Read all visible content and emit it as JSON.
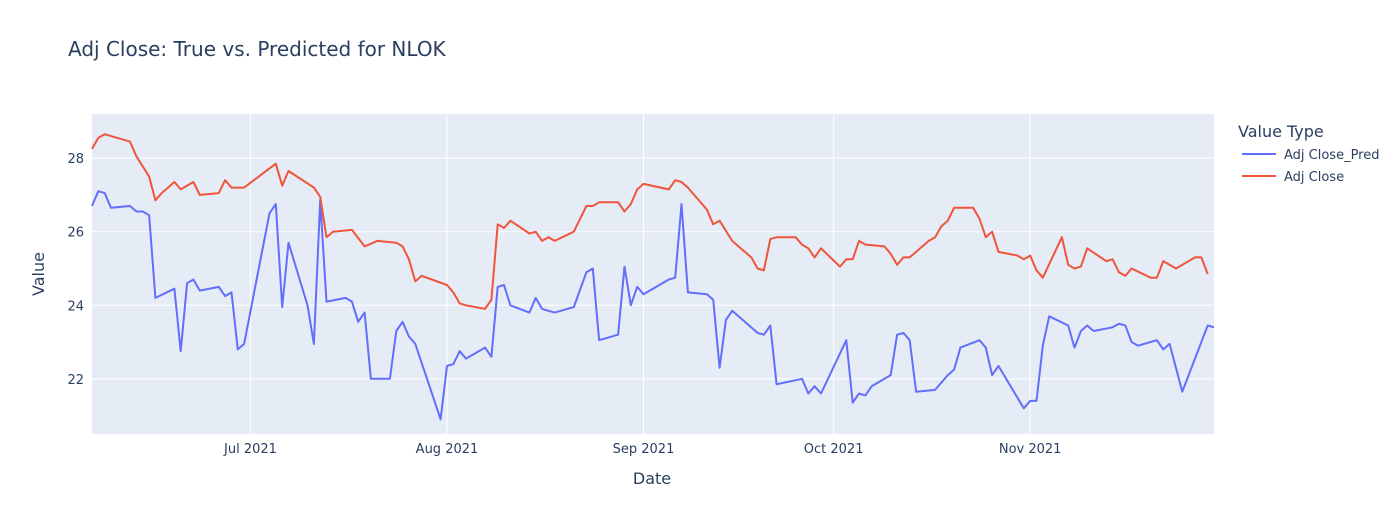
{
  "chart_data": {
    "type": "line",
    "title": "Adj Close: True vs. Predicted for NLOK",
    "xlabel": "Date",
    "ylabel": "Value",
    "x_range": [
      "2021-06-06",
      "2021-11-30"
    ],
    "ylim": [
      20.5,
      29.2
    ],
    "x_ticks": [
      {
        "date": "2021-07-01",
        "label": "Jul 2021"
      },
      {
        "date": "2021-08-01",
        "label": "Aug 2021"
      },
      {
        "date": "2021-09-01",
        "label": "Sep 2021"
      },
      {
        "date": "2021-10-01",
        "label": "Oct 2021"
      },
      {
        "date": "2021-11-01",
        "label": "Nov 2021"
      }
    ],
    "y_ticks": [
      22,
      24,
      26,
      28
    ],
    "grid": true,
    "plot_bg": "#e5ecf6",
    "legend": {
      "title": "Value Type",
      "placement": "right"
    },
    "series": [
      {
        "name": "Adj Close_Pred",
        "color": "#636efa",
        "points": [
          [
            "2021-06-06",
            26.7
          ],
          [
            "2021-06-07",
            27.1
          ],
          [
            "2021-06-08",
            27.05
          ],
          [
            "2021-06-09",
            26.65
          ],
          [
            "2021-06-12",
            26.7
          ],
          [
            "2021-06-13",
            26.55
          ],
          [
            "2021-06-14",
            26.55
          ],
          [
            "2021-06-15",
            26.45
          ],
          [
            "2021-06-16",
            24.2
          ],
          [
            "2021-06-19",
            24.45
          ],
          [
            "2021-06-20",
            22.75
          ],
          [
            "2021-06-21",
            24.6
          ],
          [
            "2021-06-22",
            24.7
          ],
          [
            "2021-06-23",
            24.4
          ],
          [
            "2021-06-26",
            24.5
          ],
          [
            "2021-06-27",
            24.25
          ],
          [
            "2021-06-28",
            24.35
          ],
          [
            "2021-06-29",
            22.8
          ],
          [
            "2021-06-30",
            22.95
          ],
          [
            "2021-07-04",
            26.5
          ],
          [
            "2021-07-05",
            26.75
          ],
          [
            "2021-07-06",
            23.95
          ],
          [
            "2021-07-07",
            25.7
          ],
          [
            "2021-07-10",
            24.0
          ],
          [
            "2021-07-11",
            22.95
          ],
          [
            "2021-07-12",
            26.85
          ],
          [
            "2021-07-13",
            24.1
          ],
          [
            "2021-07-16",
            24.2
          ],
          [
            "2021-07-17",
            24.1
          ],
          [
            "2021-07-18",
            23.55
          ],
          [
            "2021-07-19",
            23.8
          ],
          [
            "2021-07-20",
            22.0
          ],
          [
            "2021-07-23",
            22.0
          ],
          [
            "2021-07-24",
            23.3
          ],
          [
            "2021-07-25",
            23.55
          ],
          [
            "2021-07-26",
            23.15
          ],
          [
            "2021-07-27",
            22.95
          ],
          [
            "2021-07-31",
            20.9
          ],
          [
            "2021-08-01",
            22.35
          ],
          [
            "2021-08-02",
            22.4
          ],
          [
            "2021-08-03",
            22.75
          ],
          [
            "2021-08-04",
            22.55
          ],
          [
            "2021-08-07",
            22.85
          ],
          [
            "2021-08-08",
            22.6
          ],
          [
            "2021-08-09",
            24.5
          ],
          [
            "2021-08-10",
            24.55
          ],
          [
            "2021-08-11",
            24.0
          ],
          [
            "2021-08-14",
            23.8
          ],
          [
            "2021-08-15",
            24.2
          ],
          [
            "2021-08-16",
            23.9
          ],
          [
            "2021-08-17",
            23.85
          ],
          [
            "2021-08-18",
            23.8
          ],
          [
            "2021-08-21",
            23.95
          ],
          [
            "2021-08-23",
            24.9
          ],
          [
            "2021-08-24",
            25.0
          ],
          [
            "2021-08-25",
            23.05
          ],
          [
            "2021-08-28",
            23.2
          ],
          [
            "2021-08-29",
            25.05
          ],
          [
            "2021-08-30",
            24.0
          ],
          [
            "2021-08-31",
            24.5
          ],
          [
            "2021-09-01",
            24.3
          ],
          [
            "2021-09-05",
            24.7
          ],
          [
            "2021-09-06",
            24.75
          ],
          [
            "2021-09-07",
            26.75
          ],
          [
            "2021-09-08",
            24.35
          ],
          [
            "2021-09-11",
            24.3
          ],
          [
            "2021-09-12",
            24.15
          ],
          [
            "2021-09-13",
            22.3
          ],
          [
            "2021-09-14",
            23.6
          ],
          [
            "2021-09-15",
            23.85
          ],
          [
            "2021-09-19",
            23.25
          ],
          [
            "2021-09-20",
            23.2
          ],
          [
            "2021-09-21",
            23.45
          ],
          [
            "2021-09-22",
            21.85
          ],
          [
            "2021-09-26",
            22.0
          ],
          [
            "2021-09-27",
            21.6
          ],
          [
            "2021-09-28",
            21.8
          ],
          [
            "2021-09-29",
            21.6
          ],
          [
            "2021-10-03",
            23.05
          ],
          [
            "2021-10-04",
            21.35
          ],
          [
            "2021-10-05",
            21.6
          ],
          [
            "2021-10-06",
            21.55
          ],
          [
            "2021-10-07",
            21.8
          ],
          [
            "2021-10-10",
            22.1
          ],
          [
            "2021-10-11",
            23.2
          ],
          [
            "2021-10-12",
            23.25
          ],
          [
            "2021-10-13",
            23.05
          ],
          [
            "2021-10-14",
            21.65
          ],
          [
            "2021-10-17",
            21.7
          ],
          [
            "2021-10-19",
            22.1
          ],
          [
            "2021-10-20",
            22.25
          ],
          [
            "2021-10-21",
            22.85
          ],
          [
            "2021-10-24",
            23.05
          ],
          [
            "2021-10-25",
            22.85
          ],
          [
            "2021-10-26",
            22.1
          ],
          [
            "2021-10-27",
            22.35
          ],
          [
            "2021-10-31",
            21.2
          ],
          [
            "2021-11-01",
            21.4
          ],
          [
            "2021-11-02",
            21.4
          ],
          [
            "2021-11-03",
            22.9
          ],
          [
            "2021-11-04",
            23.7
          ],
          [
            "2021-11-07",
            23.45
          ],
          [
            "2021-11-08",
            22.85
          ],
          [
            "2021-11-09",
            23.3
          ],
          [
            "2021-11-10",
            23.45
          ],
          [
            "2021-11-11",
            23.3
          ],
          [
            "2021-11-14",
            23.4
          ],
          [
            "2021-11-15",
            23.5
          ],
          [
            "2021-11-16",
            23.45
          ],
          [
            "2021-11-17",
            23.0
          ],
          [
            "2021-11-18",
            22.9
          ],
          [
            "2021-11-21",
            23.05
          ],
          [
            "2021-11-22",
            22.8
          ],
          [
            "2021-11-23",
            22.95
          ],
          [
            "2021-11-25",
            21.65
          ],
          [
            "2021-11-29",
            23.45
          ],
          [
            "2021-11-30",
            23.4
          ]
        ]
      },
      {
        "name": "Adj Close",
        "color": "#ef553b",
        "points": [
          [
            "2021-06-06",
            28.25
          ],
          [
            "2021-06-07",
            28.55
          ],
          [
            "2021-06-08",
            28.65
          ],
          [
            "2021-06-09",
            28.6
          ],
          [
            "2021-06-12",
            28.45
          ],
          [
            "2021-06-13",
            28.05
          ],
          [
            "2021-06-15",
            27.5
          ],
          [
            "2021-06-16",
            26.85
          ],
          [
            "2021-06-17",
            27.05
          ],
          [
            "2021-06-19",
            27.35
          ],
          [
            "2021-06-20",
            27.15
          ],
          [
            "2021-06-22",
            27.35
          ],
          [
            "2021-06-23",
            27.0
          ],
          [
            "2021-06-26",
            27.05
          ],
          [
            "2021-06-27",
            27.4
          ],
          [
            "2021-06-28",
            27.2
          ],
          [
            "2021-06-30",
            27.2
          ],
          [
            "2021-07-05",
            27.85
          ],
          [
            "2021-07-06",
            27.25
          ],
          [
            "2021-07-07",
            27.65
          ],
          [
            "2021-07-11",
            27.2
          ],
          [
            "2021-07-12",
            26.95
          ],
          [
            "2021-07-13",
            25.85
          ],
          [
            "2021-07-14",
            26.0
          ],
          [
            "2021-07-17",
            26.05
          ],
          [
            "2021-07-19",
            25.6
          ],
          [
            "2021-07-21",
            25.75
          ],
          [
            "2021-07-24",
            25.7
          ],
          [
            "2021-07-25",
            25.6
          ],
          [
            "2021-07-26",
            25.25
          ],
          [
            "2021-07-27",
            24.65
          ],
          [
            "2021-07-28",
            24.8
          ],
          [
            "2021-08-01",
            24.55
          ],
          [
            "2021-08-02",
            24.35
          ],
          [
            "2021-08-03",
            24.05
          ],
          [
            "2021-08-04",
            24.0
          ],
          [
            "2021-08-07",
            23.9
          ],
          [
            "2021-08-08",
            24.15
          ],
          [
            "2021-08-09",
            26.2
          ],
          [
            "2021-08-10",
            26.1
          ],
          [
            "2021-08-11",
            26.3
          ],
          [
            "2021-08-14",
            25.95
          ],
          [
            "2021-08-15",
            26.0
          ],
          [
            "2021-08-16",
            25.75
          ],
          [
            "2021-08-17",
            25.85
          ],
          [
            "2021-08-18",
            25.75
          ],
          [
            "2021-08-21",
            26.0
          ],
          [
            "2021-08-22",
            26.35
          ],
          [
            "2021-08-23",
            26.7
          ],
          [
            "2021-08-24",
            26.7
          ],
          [
            "2021-08-25",
            26.8
          ],
          [
            "2021-08-28",
            26.8
          ],
          [
            "2021-08-29",
            26.55
          ],
          [
            "2021-08-30",
            26.75
          ],
          [
            "2021-08-31",
            27.15
          ],
          [
            "2021-09-01",
            27.3
          ],
          [
            "2021-09-05",
            27.15
          ],
          [
            "2021-09-06",
            27.4
          ],
          [
            "2021-09-07",
            27.35
          ],
          [
            "2021-09-08",
            27.2
          ],
          [
            "2021-09-11",
            26.6
          ],
          [
            "2021-09-12",
            26.2
          ],
          [
            "2021-09-13",
            26.3
          ],
          [
            "2021-09-15",
            25.75
          ],
          [
            "2021-09-18",
            25.3
          ],
          [
            "2021-09-19",
            25.0
          ],
          [
            "2021-09-20",
            24.95
          ],
          [
            "2021-09-21",
            25.8
          ],
          [
            "2021-09-22",
            25.85
          ],
          [
            "2021-09-25",
            25.85
          ],
          [
            "2021-09-26",
            25.65
          ],
          [
            "2021-09-27",
            25.55
          ],
          [
            "2021-09-28",
            25.3
          ],
          [
            "2021-09-29",
            25.55
          ],
          [
            "2021-10-02",
            25.05
          ],
          [
            "2021-10-03",
            25.25
          ],
          [
            "2021-10-04",
            25.25
          ],
          [
            "2021-10-05",
            25.75
          ],
          [
            "2021-10-06",
            25.65
          ],
          [
            "2021-10-09",
            25.6
          ],
          [
            "2021-10-10",
            25.4
          ],
          [
            "2021-10-11",
            25.1
          ],
          [
            "2021-10-12",
            25.3
          ],
          [
            "2021-10-13",
            25.3
          ],
          [
            "2021-10-16",
            25.75
          ],
          [
            "2021-10-17",
            25.85
          ],
          [
            "2021-10-18",
            26.15
          ],
          [
            "2021-10-19",
            26.3
          ],
          [
            "2021-10-20",
            26.65
          ],
          [
            "2021-10-23",
            26.65
          ],
          [
            "2021-10-24",
            26.35
          ],
          [
            "2021-10-25",
            25.85
          ],
          [
            "2021-10-26",
            26.0
          ],
          [
            "2021-10-27",
            25.45
          ],
          [
            "2021-10-30",
            25.35
          ],
          [
            "2021-10-31",
            25.25
          ],
          [
            "2021-11-01",
            25.35
          ],
          [
            "2021-11-02",
            24.95
          ],
          [
            "2021-11-03",
            24.75
          ],
          [
            "2021-11-06",
            25.85
          ],
          [
            "2021-11-07",
            25.1
          ],
          [
            "2021-11-08",
            25.0
          ],
          [
            "2021-11-09",
            25.05
          ],
          [
            "2021-11-10",
            25.55
          ],
          [
            "2021-11-13",
            25.2
          ],
          [
            "2021-11-14",
            25.25
          ],
          [
            "2021-11-15",
            24.9
          ],
          [
            "2021-11-16",
            24.8
          ],
          [
            "2021-11-17",
            25.0
          ],
          [
            "2021-11-20",
            24.75
          ],
          [
            "2021-11-21",
            24.75
          ],
          [
            "2021-11-22",
            25.2
          ],
          [
            "2021-11-24",
            25.0
          ],
          [
            "2021-11-27",
            25.3
          ],
          [
            "2021-11-28",
            25.3
          ],
          [
            "2021-11-29",
            24.85
          ]
        ]
      }
    ]
  }
}
